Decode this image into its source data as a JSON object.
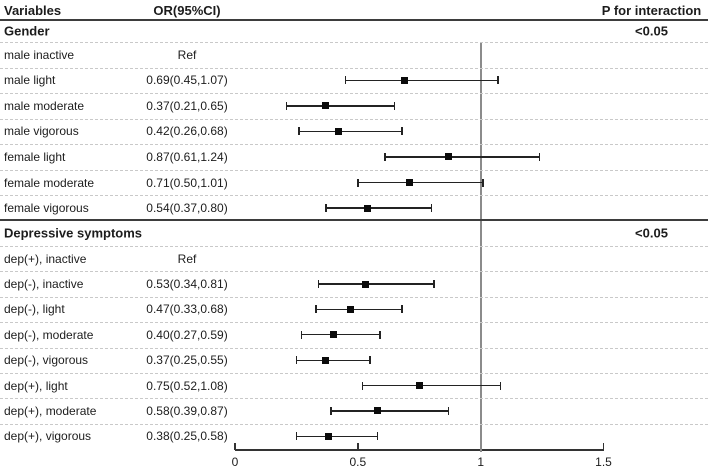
{
  "header": {
    "variables": "Variables",
    "or_ci": "OR(95%CI)",
    "p_interaction": "P for interaction"
  },
  "colors": {
    "text": "#1c1c1c",
    "marker": "#0b0b0b",
    "ci_line": "#232323",
    "reference_line": "#8b8b8b",
    "dashed_grid": "#c9c9c9",
    "solid_rule": "#3d3d3d",
    "background": "#ffffff"
  },
  "chart_data": {
    "type": "scatter",
    "subtype": "forest-plot",
    "title": "",
    "xlabel": "",
    "xlim": [
      0,
      1.5
    ],
    "x_ticks": [
      0,
      0.5,
      1,
      1.5
    ],
    "x_tick_labels": [
      "0",
      "0.5",
      "1",
      "1.5"
    ],
    "reference_line_x": 1,
    "grid": "dashed-horizontal",
    "sections": [
      {
        "title": "Gender",
        "p_for_interaction": "<0.05",
        "rows": [
          {
            "label": "male inactive",
            "or_text": "Ref",
            "or": null,
            "lo": null,
            "hi": null
          },
          {
            "label": "male light",
            "or_text": "0.69(0.45,1.07)",
            "or": 0.69,
            "lo": 0.45,
            "hi": 1.07
          },
          {
            "label": "male moderate",
            "or_text": "0.37(0.21,0.65)",
            "or": 0.37,
            "lo": 0.21,
            "hi": 0.65
          },
          {
            "label": "male vigorous",
            "or_text": "0.42(0.26,0.68)",
            "or": 0.42,
            "lo": 0.26,
            "hi": 0.68
          },
          {
            "label": "female light",
            "or_text": "0.87(0.61,1.24)",
            "or": 0.87,
            "lo": 0.61,
            "hi": 1.24
          },
          {
            "label": "female moderate",
            "or_text": "0.71(0.50,1.01)",
            "or": 0.71,
            "lo": 0.5,
            "hi": 1.01
          },
          {
            "label": "female vigorous",
            "or_text": "0.54(0.37,0.80)",
            "or": 0.54,
            "lo": 0.37,
            "hi": 0.8
          }
        ]
      },
      {
        "title": "Depressive symptoms",
        "p_for_interaction": "<0.05",
        "rows": [
          {
            "label": "dep(+), inactive",
            "or_text": "Ref",
            "or": null,
            "lo": null,
            "hi": null
          },
          {
            "label": "dep(-), inactive",
            "or_text": "0.53(0.34,0.81)",
            "or": 0.53,
            "lo": 0.34,
            "hi": 0.81
          },
          {
            "label": "dep(-), light",
            "or_text": "0.47(0.33,0.68)",
            "or": 0.47,
            "lo": 0.33,
            "hi": 0.68
          },
          {
            "label": "dep(-), moderate",
            "or_text": "0.40(0.27,0.59)",
            "or": 0.4,
            "lo": 0.27,
            "hi": 0.59
          },
          {
            "label": "dep(-), vigorous",
            "or_text": "0.37(0.25,0.55)",
            "or": 0.37,
            "lo": 0.25,
            "hi": 0.55
          },
          {
            "label": "dep(+), light",
            "or_text": "0.75(0.52,1.08)",
            "or": 0.75,
            "lo": 0.52,
            "hi": 1.08
          },
          {
            "label": "dep(+), moderate",
            "or_text": "0.58(0.39,0.87)",
            "or": 0.58,
            "lo": 0.39,
            "hi": 0.87
          },
          {
            "label": "dep(+), vigorous",
            "or_text": "0.38(0.25,0.58)",
            "or": 0.38,
            "lo": 0.25,
            "hi": 0.58
          }
        ]
      }
    ]
  }
}
